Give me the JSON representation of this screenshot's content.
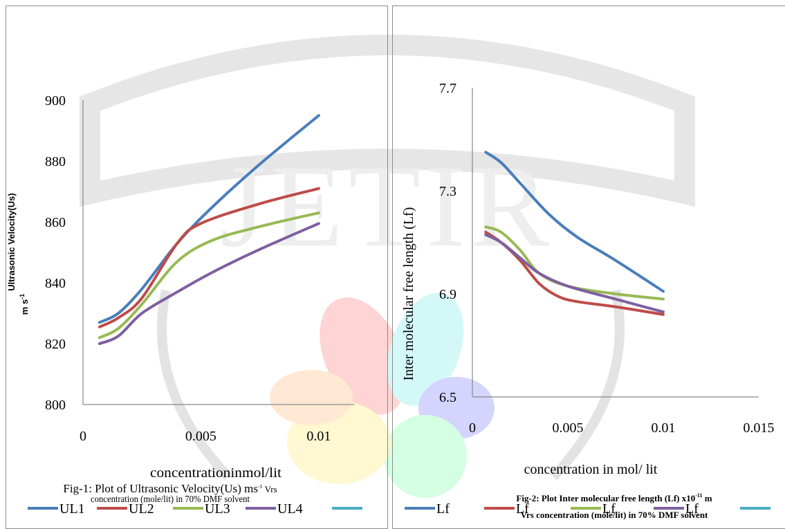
{
  "watermark_text": "JETIR",
  "colors": {
    "series1": "#4a7ebb",
    "series2": "#be4b48",
    "series3": "#98b954",
    "series4": "#7d60a0",
    "series5": "#4bacc6",
    "axis": "#868686",
    "panel_border": "#8a8a8a"
  },
  "chart_data": [
    {
      "type": "line",
      "title": "",
      "xlabel": "concentrationinmol/lit",
      "ylabel_line1": "Ultrasonic Velocity(Us)",
      "ylabel_line2": "m s",
      "ylabel_sup": "-1",
      "caption_line1": "Fig-1: Plot of Ultrasonic Velocity(Us) ms",
      "caption_sup": "-1",
      "caption_line1_end": " Vrs",
      "caption_line2": "concentration (mole/lit) in 70% DMF solvent",
      "xlim": [
        0,
        0.0115
      ],
      "ylim": [
        800,
        900
      ],
      "x_ticks": [
        0,
        0.005,
        0.01
      ],
      "x_tick_labels": [
        "0",
        "0.005",
        "0.01"
      ],
      "y_ticks": [
        800,
        820,
        840,
        860,
        880,
        900
      ],
      "y_tick_labels": [
        "800",
        "820",
        "840",
        "860",
        "880",
        "900"
      ],
      "grid": false,
      "legend_position": "bottom",
      "series": [
        {
          "name": "UL1",
          "x": [
            0.0007,
            0.0015,
            0.0025,
            0.004,
            0.0055,
            0.0075,
            0.01
          ],
          "y": [
            827,
            830,
            838,
            853,
            865,
            879,
            895
          ]
        },
        {
          "name": "UL2",
          "x": [
            0.0007,
            0.0015,
            0.0025,
            0.004,
            0.005,
            0.0075,
            0.01
          ],
          "y": [
            825.5,
            828.5,
            835,
            853,
            859.5,
            866,
            871
          ]
        },
        {
          "name": "UL3",
          "x": [
            0.0007,
            0.0015,
            0.0025,
            0.004,
            0.0055,
            0.0075,
            0.01
          ],
          "y": [
            822,
            825,
            833,
            847,
            854,
            858.5,
            863
          ]
        },
        {
          "name": "UL4",
          "x": [
            0.0007,
            0.0015,
            0.0025,
            0.004,
            0.0055,
            0.0075,
            0.01
          ],
          "y": [
            820,
            822.5,
            830,
            837,
            843.5,
            851,
            859.5
          ]
        },
        {
          "name": "",
          "x": [],
          "y": []
        }
      ]
    },
    {
      "type": "line",
      "title": "",
      "xlabel": "concentration in mol/ lit",
      "ylabel_line1": "Inter molecular free length (Lf)",
      "ylabel_line2": "",
      "caption_line1": "Fig-2: Plot Inter molecular free length (Lf) x10",
      "caption_sup": "-11",
      "caption_line1_end": " m",
      "caption_line2": "Vrs concentration (mole/lit) in 70% DMF solvent",
      "xlim": [
        0,
        0.015
      ],
      "ylim": [
        6.5,
        7.7
      ],
      "x_ticks": [
        0,
        0.005,
        0.01,
        0.015
      ],
      "x_tick_labels": [
        "0",
        "0.005",
        "0.01",
        "0.015"
      ],
      "y_ticks": [
        6.5,
        6.9,
        7.3,
        7.7
      ],
      "y_tick_labels": [
        "6.5",
        "6.9",
        "7.3",
        "7.7"
      ],
      "grid": false,
      "legend_position": "bottom",
      "series": [
        {
          "name": "Lf",
          "x": [
            0.0007,
            0.0015,
            0.0025,
            0.004,
            0.0055,
            0.0075,
            0.01
          ],
          "y": [
            7.45,
            7.41,
            7.33,
            7.21,
            7.12,
            7.03,
            6.91
          ]
        },
        {
          "name": "Lf",
          "x": [
            0.0007,
            0.0015,
            0.0025,
            0.0035,
            0.0045,
            0.0055,
            0.0075,
            0.01
          ],
          "y": [
            7.14,
            7.1,
            7.03,
            6.94,
            6.89,
            6.87,
            6.85,
            6.82
          ]
        },
        {
          "name": "Lf",
          "x": [
            0.0007,
            0.0015,
            0.0025,
            0.0035,
            0.005,
            0.0075,
            0.01
          ],
          "y": [
            7.16,
            7.14,
            7.07,
            6.98,
            6.93,
            6.9,
            6.88
          ]
        },
        {
          "name": "Lf",
          "x": [
            0.0007,
            0.0015,
            0.0025,
            0.0035,
            0.005,
            0.0075,
            0.01
          ],
          "y": [
            7.13,
            7.1,
            7.04,
            6.98,
            6.93,
            6.88,
            6.83
          ]
        },
        {
          "name": "",
          "x": [],
          "y": []
        }
      ]
    }
  ]
}
